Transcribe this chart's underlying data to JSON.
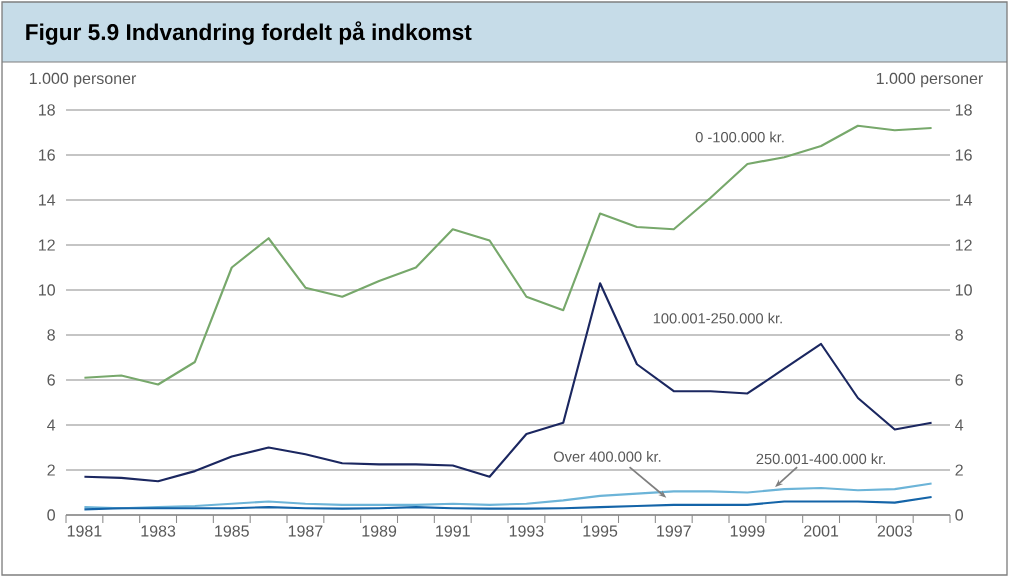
{
  "chart_data": {
    "type": "line",
    "title": "Figur 5.9 Indvandring fordelt på indkomst",
    "ylabel": "1.000 personer",
    "y2label": "1.000 personer",
    "categories": [
      "1981",
      null,
      "1983",
      null,
      "1985",
      null,
      "1987",
      null,
      "1989",
      null,
      "1991",
      null,
      "1993",
      null,
      "1995",
      null,
      "1997",
      null,
      "1999",
      null,
      "2001",
      null,
      "2003",
      null
    ],
    "series": [
      {
        "name": "0 -100.000 kr.",
        "color": "#77a86b",
        "values": [
          6.1,
          6.2,
          5.8,
          6.8,
          11.0,
          12.3,
          10.1,
          9.7,
          10.4,
          11.0,
          12.7,
          12.2,
          9.7,
          9.1,
          13.4,
          12.8,
          12.7,
          14.1,
          15.6,
          15.9,
          16.4,
          17.3,
          17.1,
          17.2
        ]
      },
      {
        "name": "100.001-250.000 kr.",
        "color": "#1b2760",
        "values": [
          1.7,
          1.65,
          1.5,
          1.95,
          2.6,
          3.0,
          2.7,
          2.3,
          2.25,
          2.25,
          2.2,
          1.7,
          3.6,
          4.1,
          10.3,
          6.7,
          5.5,
          5.5,
          5.4,
          6.5,
          7.6,
          5.2,
          3.8,
          4.1
        ]
      },
      {
        "name": "250.001-400.000 kr.",
        "color": "#6cb4d8",
        "values": [
          0.35,
          0.3,
          0.35,
          0.4,
          0.5,
          0.6,
          0.5,
          0.45,
          0.45,
          0.45,
          0.5,
          0.45,
          0.5,
          0.65,
          0.85,
          0.95,
          1.05,
          1.05,
          1.0,
          1.15,
          1.2,
          1.1,
          1.15,
          1.4
        ]
      },
      {
        "name": "Over 400.000 kr.",
        "color": "#1464a8",
        "values": [
          0.25,
          0.3,
          0.3,
          0.3,
          0.3,
          0.35,
          0.3,
          0.28,
          0.3,
          0.35,
          0.3,
          0.28,
          0.28,
          0.3,
          0.35,
          0.4,
          0.45,
          0.45,
          0.45,
          0.6,
          0.6,
          0.6,
          0.55,
          0.8
        ]
      }
    ],
    "ylim": [
      0,
      18
    ],
    "yticks": [
      0,
      2,
      4,
      6,
      8,
      10,
      12,
      14,
      16,
      18
    ],
    "y2lim": [
      0,
      18
    ],
    "y2ticks": [
      0,
      2,
      4,
      6,
      8,
      10,
      12,
      14,
      16,
      18
    ],
    "grid": "y"
  }
}
